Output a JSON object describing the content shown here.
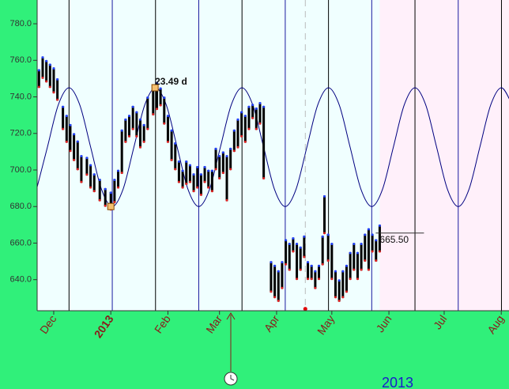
{
  "chart_data": {
    "type": "hilo",
    "xlim": [
      -40,
      216.2
    ],
    "ylim": [
      623,
      793
    ],
    "yticks": [
      {
        "value": 640,
        "label": "640.0"
      },
      {
        "value": 660,
        "label": "660.0"
      },
      {
        "value": 680,
        "label": "680.0"
      },
      {
        "value": 700,
        "label": "700.0"
      },
      {
        "value": 720,
        "label": "720.0"
      },
      {
        "value": 740,
        "label": "740.0"
      },
      {
        "value": 760,
        "label": "760.0"
      },
      {
        "value": 780,
        "label": "780.0"
      }
    ],
    "xticks": [
      {
        "value": -31,
        "label": "Dec"
      },
      {
        "value": 0,
        "label": "2013"
      },
      {
        "value": 31,
        "label": "Feb"
      },
      {
        "value": 59,
        "label": "Mar"
      },
      {
        "value": 90,
        "label": "Apr"
      },
      {
        "value": 120,
        "label": "May"
      },
      {
        "value": 151,
        "label": "Jun"
      },
      {
        "value": 181,
        "label": "Jul"
      },
      {
        "value": 212,
        "label": "Aug"
      }
    ],
    "year_label": "2013",
    "bars": {
      "color": "#000000",
      "x": [
        -39,
        -37,
        -35,
        -33,
        -31,
        -29,
        -26,
        -24,
        -22,
        -20,
        -18,
        -16,
        -13,
        -11,
        -9,
        -6,
        -3,
        0,
        2,
        4,
        6,
        8,
        10,
        12,
        14,
        16,
        18,
        20,
        23,
        25,
        27,
        29,
        31,
        33,
        35,
        37,
        39,
        41,
        43,
        45,
        47,
        49,
        51,
        53,
        55,
        57,
        59,
        61,
        63,
        65,
        67,
        69,
        71,
        73,
        75,
        77,
        79,
        81,
        83,
        87,
        89,
        91,
        93,
        95,
        97,
        99,
        101,
        103,
        105,
        107,
        109,
        111,
        113,
        115,
        116,
        118,
        120,
        122,
        124,
        126,
        128,
        130,
        132,
        134,
        136,
        138,
        140,
        142,
        144,
        146
      ],
      "low": [
        745,
        750,
        748,
        745,
        742,
        738,
        722,
        715,
        710,
        705,
        700,
        693,
        697,
        690,
        688,
        683,
        680,
        678,
        682,
        690,
        698,
        715,
        718,
        722,
        718,
        712,
        715,
        722,
        730,
        733,
        735,
        725,
        715,
        705,
        700,
        693,
        690,
        692,
        693,
        688,
        690,
        686,
        693,
        690,
        688,
        700,
        695,
        698,
        683,
        700,
        710,
        712,
        718,
        715,
        722,
        728,
        722,
        725,
        695,
        633,
        630,
        628,
        635,
        648,
        645,
        655,
        640,
        645,
        652,
        640,
        640,
        635,
        640,
        648,
        665,
        650,
        640,
        630,
        628,
        630,
        633,
        640,
        645,
        640,
        645,
        650,
        645,
        655,
        650,
        655
      ],
      "high": [
        755,
        762,
        760,
        758,
        756,
        750,
        735,
        730,
        725,
        720,
        716,
        708,
        707,
        703,
        698,
        695,
        690,
        688,
        695,
        700,
        722,
        728,
        730,
        735,
        732,
        728,
        725,
        740,
        745,
        748,
        745,
        740,
        730,
        722,
        715,
        705,
        700,
        705,
        703,
        698,
        702,
        698,
        702,
        700,
        700,
        712,
        708,
        710,
        708,
        712,
        722,
        728,
        732,
        730,
        735,
        736,
        734,
        737,
        735,
        650,
        648,
        645,
        650,
        662,
        660,
        663,
        660,
        658,
        664,
        650,
        648,
        645,
        648,
        664,
        686,
        665,
        660,
        645,
        640,
        645,
        648,
        655,
        660,
        655,
        660,
        665,
        668,
        665,
        662,
        670
      ]
    },
    "cycle": {
      "color": "#000080",
      "x": [
        -40.3,
        -34.43,
        -28.56,
        -22.69,
        -16.82,
        -10.95,
        -5.08,
        0.79,
        6.66,
        12.53,
        18.4,
        24.27,
        30.14,
        36.01,
        41.88,
        47.75,
        53.62,
        59.49,
        65.36,
        71.23,
        77.1,
        82.97,
        88.84,
        94.71,
        100.58,
        106.45,
        112.32,
        118.19,
        124.06,
        129.93,
        135.8,
        141.67,
        147.54,
        153.41,
        159.28,
        165.15,
        171.02,
        176.89,
        182.76,
        188.63,
        194.5,
        200.37,
        206.24,
        212.11,
        217.98
      ],
      "values": [
        689.5,
        712.5,
        735.5,
        745,
        735.5,
        712.5,
        689.5,
        680,
        689.5,
        712.5,
        735.5,
        745,
        735.5,
        712.5,
        689.5,
        680,
        689.5,
        712.5,
        735.5,
        745,
        735.5,
        712.5,
        689.5,
        680,
        689.5,
        712.5,
        735.5,
        745,
        735.5,
        712.5,
        689.5,
        680,
        689.5,
        712.5,
        735.5,
        745,
        735.5,
        712.5,
        689.5,
        680,
        689.5,
        712.5,
        735.5,
        745,
        735.5
      ]
    },
    "annotations": [
      {
        "text": "23.49 d",
        "x": 24,
        "y": 745
      }
    ],
    "markers": [
      {
        "x": 0,
        "y": 680
      },
      {
        "x": 24,
        "y": 745
      }
    ],
    "last_price": {
      "value": 665.5,
      "label": "665.50"
    },
    "signal": {
      "x": 105.6,
      "y": 624
    }
  }
}
